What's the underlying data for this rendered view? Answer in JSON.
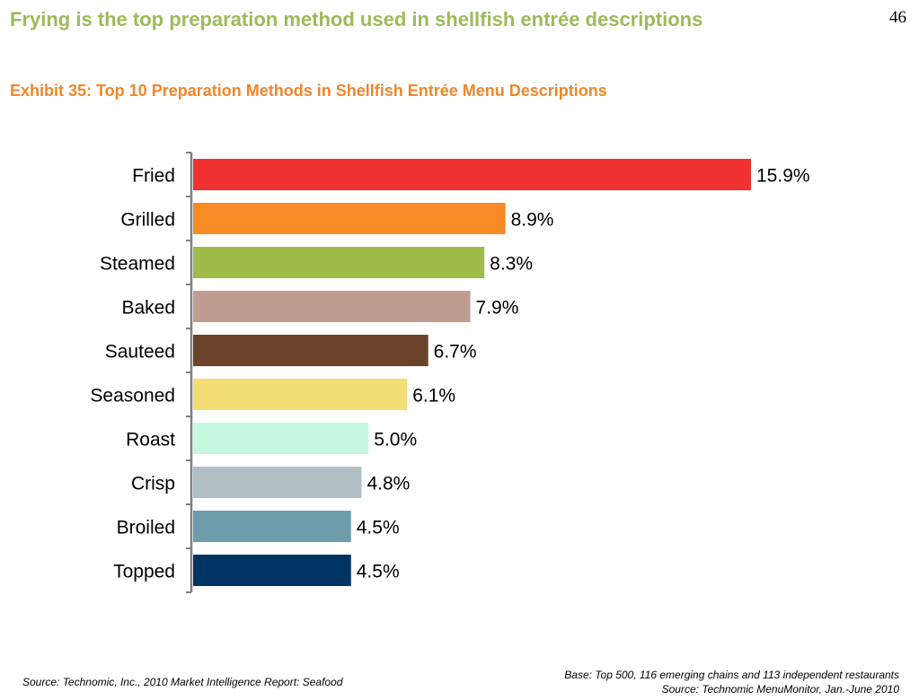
{
  "slide": {
    "headline": "Frying is the top preparation method used in shellfish entrée descriptions",
    "page_number": "46"
  },
  "chart_data": {
    "type": "bar",
    "orientation": "horizontal",
    "title": "Exhibit 35: Top 10 Preparation Methods in Shellfish Entrée Menu Descriptions",
    "categories": [
      "Fried",
      "Grilled",
      "Steamed",
      "Baked",
      "Sauteed",
      "Seasoned",
      "Roast",
      "Crisp",
      "Broiled",
      "Topped"
    ],
    "values": [
      15.9,
      8.9,
      8.3,
      7.9,
      6.7,
      6.1,
      5.0,
      4.8,
      4.5,
      4.5
    ],
    "value_labels": [
      "15.9%",
      "8.9%",
      "8.3%",
      "7.9%",
      "6.7%",
      "6.1%",
      "5.0%",
      "4.8%",
      "4.5%",
      "4.5%"
    ],
    "colors": [
      "#ef3131",
      "#f68a24",
      "#9fbb4a",
      "#bf9e91",
      "#6b432b",
      "#f3dd74",
      "#c6f8df",
      "#b1bfc5",
      "#6d9caa",
      "#003462"
    ],
    "xlim": [
      0,
      15.9
    ],
    "xlabel": "",
    "ylabel": "",
    "grid": false,
    "legend": "none"
  },
  "footer": {
    "source_left": "Source: Technomic, Inc., 2010 Market Intelligence Report: Seafood",
    "base_note": "Base: Top 500, 116 emerging chains and 113 independent restaurants",
    "source_right": "Source: Technomic MenuMonitor, Jan.-June 2010"
  }
}
